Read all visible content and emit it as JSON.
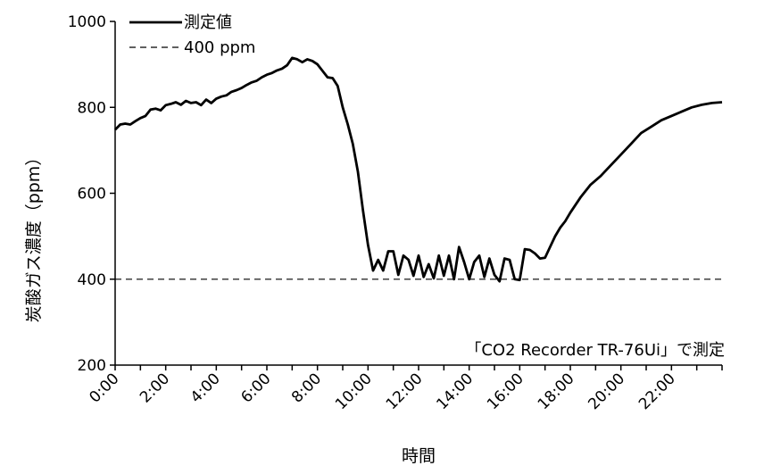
{
  "chart_data": {
    "type": "line",
    "xlabel": "時間",
    "ylabel": "炭酸ガス濃度（ppm）",
    "ylim": [
      200,
      1000
    ],
    "yticks": [
      "200",
      "400",
      "600",
      "800",
      "1000"
    ],
    "xlim": [
      0,
      24
    ],
    "xticks": [
      {
        "pos": 0,
        "label": "0:00"
      },
      {
        "pos": 2,
        "label": "2:00"
      },
      {
        "pos": 4,
        "label": "4:00"
      },
      {
        "pos": 6,
        "label": "6:00"
      },
      {
        "pos": 8,
        "label": "8:00"
      },
      {
        "pos": 10,
        "label": "10:00"
      },
      {
        "pos": 12,
        "label": "12:00"
      },
      {
        "pos": 14,
        "label": "14:00"
      },
      {
        "pos": 16,
        "label": "16:00"
      },
      {
        "pos": 18,
        "label": "18:00"
      },
      {
        "pos": 20,
        "label": "20:00"
      },
      {
        "pos": 22,
        "label": "22:00"
      }
    ],
    "grid": false,
    "legend_position": "top-left",
    "annotation": "「CO2 Recorder TR-76Ui」で測定",
    "series": [
      {
        "name": "測定値",
        "style": "solid",
        "color": "#000000",
        "x": [
          0,
          0.2,
          0.4,
          0.6,
          0.8,
          1.0,
          1.2,
          1.4,
          1.6,
          1.8,
          2.0,
          2.2,
          2.4,
          2.6,
          2.8,
          3.0,
          3.2,
          3.4,
          3.6,
          3.8,
          4.0,
          4.2,
          4.4,
          4.6,
          4.8,
          5.0,
          5.2,
          5.4,
          5.6,
          5.8,
          6.0,
          6.2,
          6.4,
          6.6,
          6.8,
          7.0,
          7.2,
          7.4,
          7.6,
          7.8,
          8.0,
          8.2,
          8.4,
          8.6,
          8.8,
          9.0,
          9.2,
          9.4,
          9.6,
          9.8,
          10.0,
          10.2,
          10.4,
          10.6,
          10.8,
          11.0,
          11.2,
          11.4,
          11.6,
          11.8,
          12.0,
          12.2,
          12.4,
          12.6,
          12.8,
          13.0,
          13.2,
          13.4,
          13.6,
          13.8,
          14.0,
          14.2,
          14.4,
          14.6,
          14.8,
          15.0,
          15.2,
          15.4,
          15.6,
          15.8,
          16.0,
          16.2,
          16.4,
          16.6,
          16.8,
          17.0,
          17.2,
          17.4,
          17.6,
          17.8,
          18.0,
          18.4,
          18.8,
          19.2,
          19.6,
          20.0,
          20.4,
          20.8,
          21.2,
          21.6,
          22.0,
          22.4,
          22.8,
          23.2,
          23.6,
          24.0
        ],
        "values": [
          748,
          760,
          762,
          760,
          768,
          775,
          780,
          795,
          797,
          793,
          805,
          808,
          812,
          806,
          815,
          810,
          812,
          805,
          818,
          810,
          820,
          825,
          828,
          836,
          840,
          845,
          852,
          858,
          862,
          870,
          876,
          880,
          886,
          890,
          898,
          915,
          912,
          905,
          912,
          908,
          900,
          885,
          870,
          868,
          850,
          800,
          760,
          715,
          650,
          560,
          480,
          420,
          445,
          420,
          465,
          465,
          410,
          455,
          445,
          408,
          455,
          405,
          435,
          402,
          455,
          408,
          455,
          400,
          475,
          440,
          400,
          440,
          455,
          405,
          448,
          410,
          395,
          448,
          445,
          400,
          398,
          470,
          468,
          460,
          448,
          450,
          475,
          500,
          520,
          535,
          555,
          590,
          620,
          640,
          665,
          690,
          715,
          740,
          755,
          770,
          780,
          790,
          800,
          806,
          810,
          812
        ]
      },
      {
        "name": "400 ppm",
        "style": "dashed",
        "color": "#000000",
        "x": [
          0,
          24
        ],
        "values": [
          400,
          400
        ]
      }
    ]
  }
}
